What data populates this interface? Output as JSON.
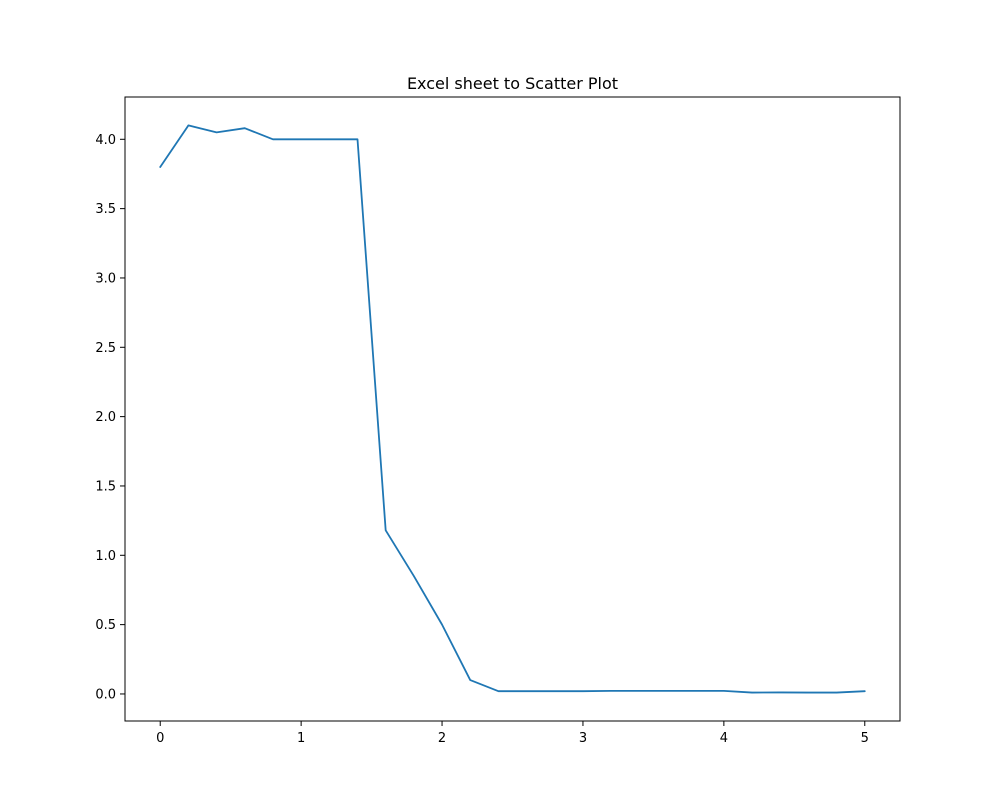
{
  "chart_data": {
    "type": "line",
    "title": "Excel sheet to Scatter Plot",
    "xlabel": "",
    "ylabel": "",
    "xlim": [
      -0.25,
      5.25
    ],
    "ylim": [
      -0.195,
      4.305
    ],
    "xticks": [
      0,
      1,
      2,
      3,
      4,
      5
    ],
    "xtick_labels": [
      "0",
      "1",
      "2",
      "3",
      "4",
      "5"
    ],
    "yticks": [
      0.0,
      0.5,
      1.0,
      1.5,
      2.0,
      2.5,
      3.0,
      3.5,
      4.0
    ],
    "ytick_labels": [
      "0.0",
      "0.5",
      "1.0",
      "1.5",
      "2.0",
      "2.5",
      "3.0",
      "3.5",
      "4.0"
    ],
    "grid": false,
    "series": [
      {
        "color": "#1f77b4",
        "x": [
          0.0,
          0.2,
          0.4,
          0.6,
          0.8,
          1.0,
          1.2,
          1.4,
          1.6,
          1.8,
          2.0,
          2.2,
          2.4,
          2.6,
          2.8,
          3.0,
          3.2,
          3.4,
          3.6,
          3.8,
          4.0,
          4.2,
          4.4,
          4.6,
          4.8,
          5.0
        ],
        "y": [
          3.8,
          4.1,
          4.05,
          4.08,
          4.0,
          4.0,
          4.0,
          4.0,
          1.18,
          0.85,
          0.5,
          0.1,
          0.02,
          0.02,
          0.02,
          0.02,
          0.022,
          0.022,
          0.022,
          0.022,
          0.022,
          0.01,
          0.011,
          0.01,
          0.01,
          0.02
        ]
      }
    ]
  }
}
